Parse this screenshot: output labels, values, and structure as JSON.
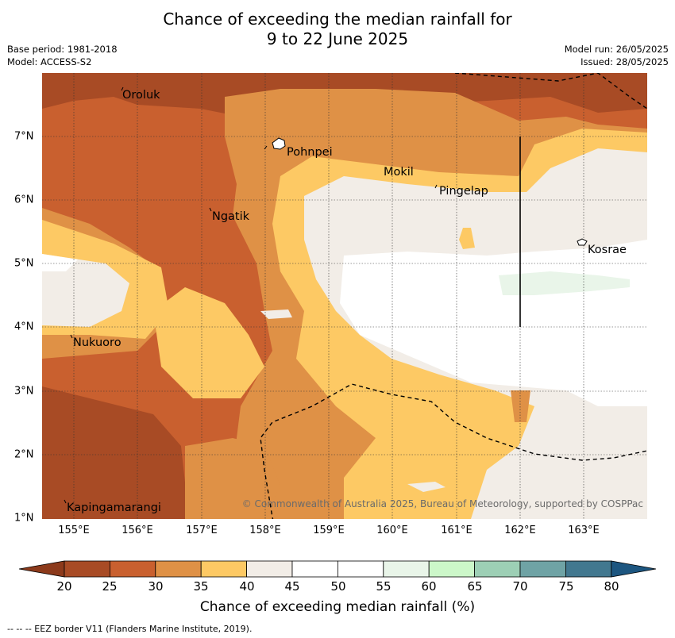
{
  "title_line1": "Chance of exceeding the median rainfall for",
  "title_line2": "9 to 22 June 2025",
  "base_period": "Base period: 1981-2018",
  "model": "Model: ACCESS-S2",
  "model_run": "Model run: 26/05/2025",
  "issued": "Issued: 28/05/2025",
  "x_ticks": [
    "155°E",
    "156°E",
    "157°E",
    "158°E",
    "159°E",
    "160°E",
    "161°E",
    "162°E",
    "163°E"
  ],
  "y_ticks": [
    "7°N",
    "6°N",
    "5°N",
    "4°N",
    "3°N",
    "2°N",
    "1°N"
  ],
  "places": {
    "oroluk": "Oroluk",
    "pohnpei": "Pohnpei",
    "mokil": "Mokil",
    "pingelap": "Pingelap",
    "ngatik": "Ngatik",
    "kosrae": "Kosrae",
    "nukuoro": "Nukuoro",
    "kapingamarangi": "Kapingamarangi"
  },
  "copyright": "© Commonwealth of Australia 2025, Bureau of Meteorology, supported by COSPPac",
  "colorbar": {
    "labels": [
      "20",
      "25",
      "30",
      "35",
      "40",
      "45",
      "50",
      "55",
      "60",
      "65",
      "70",
      "75",
      "80"
    ],
    "colors": [
      "#a84b25",
      "#c9602f",
      "#df9146",
      "#fdc964",
      "#f2ede7",
      "#ffffff",
      "#ffffff",
      "#e9f5e9",
      "#ccf7c9",
      "#9dcfb5",
      "#6fa3a5",
      "#42788f"
    ],
    "under_color": "#8c3a1b",
    "over_color": "#1d5680",
    "title": "Chance of exceeding median rainfall (%)"
  },
  "footnote": "-- -- -- EEZ border V11 (Flanders Marine Institute, 2019)."
}
